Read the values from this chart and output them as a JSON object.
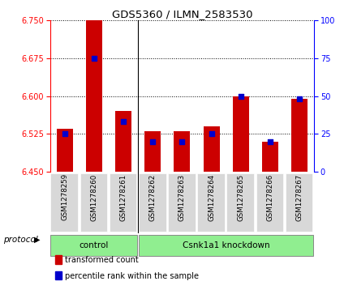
{
  "title": "GDS5360 / ILMN_2583530",
  "samples": [
    "GSM1278259",
    "GSM1278260",
    "GSM1278261",
    "GSM1278262",
    "GSM1278263",
    "GSM1278264",
    "GSM1278265",
    "GSM1278266",
    "GSM1278267"
  ],
  "transformed_counts": [
    6.535,
    6.75,
    6.57,
    6.53,
    6.53,
    6.54,
    6.6,
    6.51,
    6.595
  ],
  "percentile_ranks": [
    25,
    75,
    33,
    20,
    20,
    25,
    50,
    20,
    48
  ],
  "y_min": 6.45,
  "y_max": 6.75,
  "y_ticks": [
    6.45,
    6.525,
    6.6,
    6.675,
    6.75
  ],
  "right_y_ticks": [
    0,
    25,
    50,
    75,
    100
  ],
  "bar_color": "#cc0000",
  "dot_color": "#0000cc",
  "background_color": "#ffffff",
  "cell_bg": "#d8d8d8",
  "green_color": "#90ee90",
  "groups": [
    {
      "label": "control",
      "start": 0,
      "end": 2
    },
    {
      "label": "Csnk1a1 knockdown",
      "start": 3,
      "end": 8
    }
  ],
  "legend_items": [
    {
      "label": "transformed count",
      "color": "#cc0000"
    },
    {
      "label": "percentile rank within the sample",
      "color": "#0000cc"
    }
  ],
  "bar_width": 0.55,
  "protocol_label": "protocol"
}
